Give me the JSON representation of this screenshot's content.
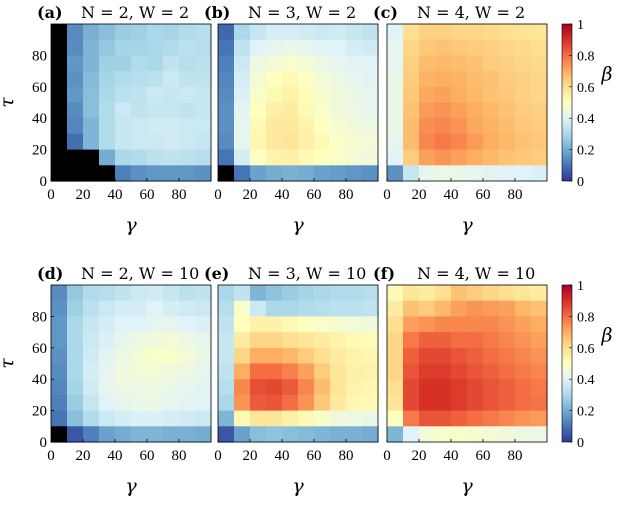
{
  "chart_data": {
    "type": "heatmap",
    "colorbar": {
      "label": "β",
      "range": [
        0,
        1
      ],
      "ticks": [
        "0",
        "0.2",
        "0.4",
        "0.6",
        "0.8",
        "1"
      ],
      "colormap": [
        "#313695",
        "#4575b4",
        "#74add1",
        "#abd9e9",
        "#e0f3f8",
        "#ffffbf",
        "#fee090",
        "#fdae61",
        "#f46d43",
        "#d73027",
        "#a50026"
      ]
    },
    "xlabel": "γ",
    "ylabel": "τ",
    "xticks": [
      "0",
      "20",
      "40",
      "60",
      "80"
    ],
    "yticks": [
      "0",
      "20",
      "40",
      "60",
      "80"
    ],
    "xlim": [
      0,
      100
    ],
    "ylim": [
      0,
      100
    ],
    "grid_size": 10,
    "panels": [
      {
        "label": "(a)",
        "title": "N = 2,  W = 2",
        "N": 2,
        "W": 2,
        "rows_top_to_bottom": [
          [
            -1,
            0.14,
            0.21,
            0.24,
            0.27,
            0.28,
            0.3,
            0.29,
            0.31,
            0.32
          ],
          [
            -1,
            0.14,
            0.22,
            0.26,
            0.29,
            0.29,
            0.3,
            0.31,
            0.33,
            0.32
          ],
          [
            -1,
            0.16,
            0.22,
            0.28,
            0.28,
            0.31,
            0.3,
            0.34,
            0.32,
            0.33
          ],
          [
            -1,
            0.15,
            0.23,
            0.29,
            0.31,
            0.32,
            0.33,
            0.36,
            0.34,
            0.34
          ],
          [
            -1,
            0.16,
            0.24,
            0.3,
            0.33,
            0.34,
            0.36,
            0.35,
            0.36,
            0.35
          ],
          [
            -1,
            0.14,
            0.24,
            0.31,
            0.36,
            0.34,
            0.35,
            0.35,
            0.34,
            0.35
          ],
          [
            -1,
            0.13,
            0.22,
            0.31,
            0.35,
            0.36,
            0.37,
            0.37,
            0.36,
            0.36
          ],
          [
            -1,
            0.09,
            0.22,
            0.31,
            0.35,
            0.36,
            0.36,
            0.37,
            0.36,
            0.35
          ],
          [
            -1,
            -1,
            -1,
            0.2,
            0.3,
            0.31,
            0.33,
            0.34,
            0.33,
            0.32
          ],
          [
            -1,
            -1,
            -1,
            -1,
            0.12,
            0.15,
            0.16,
            0.16,
            0.16,
            0.15
          ]
        ]
      },
      {
        "label": "(b)",
        "title": "N = 3,  W = 2",
        "N": 3,
        "W": 2,
        "rows_top_to_bottom": [
          [
            0.08,
            0.3,
            0.35,
            0.38,
            0.38,
            0.37,
            0.36,
            0.37,
            0.35,
            0.34
          ],
          [
            0.1,
            0.34,
            0.4,
            0.42,
            0.43,
            0.42,
            0.4,
            0.4,
            0.38,
            0.37
          ],
          [
            0.12,
            0.36,
            0.44,
            0.46,
            0.48,
            0.46,
            0.44,
            0.42,
            0.41,
            0.4
          ],
          [
            0.13,
            0.38,
            0.46,
            0.5,
            0.52,
            0.49,
            0.46,
            0.44,
            0.42,
            0.41
          ],
          [
            0.14,
            0.39,
            0.48,
            0.52,
            0.54,
            0.51,
            0.47,
            0.45,
            0.43,
            0.42
          ],
          [
            0.15,
            0.41,
            0.5,
            0.55,
            0.56,
            0.52,
            0.48,
            0.45,
            0.44,
            0.42
          ],
          [
            0.15,
            0.42,
            0.52,
            0.57,
            0.57,
            0.54,
            0.5,
            0.47,
            0.45,
            0.44
          ],
          [
            0.14,
            0.42,
            0.53,
            0.57,
            0.58,
            0.55,
            0.52,
            0.49,
            0.47,
            0.46
          ],
          [
            0.1,
            0.38,
            0.49,
            0.54,
            0.55,
            0.52,
            0.5,
            0.48,
            0.46,
            0.45
          ],
          [
            -1,
            0.1,
            0.18,
            0.2,
            0.21,
            0.2,
            0.18,
            0.17,
            0.16,
            0.15
          ]
        ]
      },
      {
        "label": "(c)",
        "title": "N = 4,  W = 2",
        "N": 4,
        "W": 2,
        "rows_top_to_bottom": [
          [
            0.4,
            0.6,
            0.63,
            0.63,
            0.62,
            0.62,
            0.61,
            0.6,
            0.59,
            0.58
          ],
          [
            0.42,
            0.62,
            0.65,
            0.66,
            0.65,
            0.64,
            0.63,
            0.62,
            0.61,
            0.6
          ],
          [
            0.42,
            0.63,
            0.67,
            0.68,
            0.67,
            0.66,
            0.64,
            0.63,
            0.62,
            0.61
          ],
          [
            0.43,
            0.64,
            0.69,
            0.7,
            0.69,
            0.67,
            0.66,
            0.64,
            0.63,
            0.62
          ],
          [
            0.43,
            0.65,
            0.71,
            0.72,
            0.7,
            0.68,
            0.66,
            0.65,
            0.63,
            0.62
          ],
          [
            0.43,
            0.66,
            0.73,
            0.74,
            0.72,
            0.7,
            0.68,
            0.66,
            0.64,
            0.63
          ],
          [
            0.43,
            0.67,
            0.75,
            0.76,
            0.74,
            0.71,
            0.69,
            0.67,
            0.65,
            0.64
          ],
          [
            0.42,
            0.67,
            0.76,
            0.78,
            0.76,
            0.73,
            0.7,
            0.68,
            0.66,
            0.65
          ],
          [
            0.4,
            0.64,
            0.72,
            0.74,
            0.72,
            0.7,
            0.68,
            0.66,
            0.65,
            0.64
          ],
          [
            0.15,
            0.35,
            0.42,
            0.44,
            0.43,
            0.42,
            0.41,
            0.4,
            0.4,
            0.39
          ]
        ]
      },
      {
        "label": "(d)",
        "title": "N = 2,  W = 10",
        "N": 2,
        "W": 10,
        "rows_top_to_bottom": [
          [
            0.14,
            0.26,
            0.31,
            0.32,
            0.34,
            0.36,
            0.37,
            0.35,
            0.33,
            0.34
          ],
          [
            0.15,
            0.28,
            0.33,
            0.36,
            0.38,
            0.38,
            0.4,
            0.38,
            0.37,
            0.36
          ],
          [
            0.16,
            0.3,
            0.35,
            0.38,
            0.4,
            0.4,
            0.42,
            0.42,
            0.4,
            0.39
          ],
          [
            0.16,
            0.3,
            0.36,
            0.39,
            0.42,
            0.44,
            0.45,
            0.46,
            0.44,
            0.42
          ],
          [
            0.15,
            0.3,
            0.37,
            0.41,
            0.44,
            0.46,
            0.48,
            0.48,
            0.46,
            0.43
          ],
          [
            0.14,
            0.3,
            0.38,
            0.42,
            0.45,
            0.46,
            0.46,
            0.45,
            0.44,
            0.42
          ],
          [
            0.13,
            0.29,
            0.37,
            0.42,
            0.44,
            0.44,
            0.44,
            0.43,
            0.42,
            0.41
          ],
          [
            0.12,
            0.27,
            0.35,
            0.4,
            0.42,
            0.43,
            0.43,
            0.42,
            0.41,
            0.4
          ],
          [
            0.1,
            0.24,
            0.31,
            0.36,
            0.38,
            0.39,
            0.39,
            0.38,
            0.37,
            0.36
          ],
          [
            -1,
            0.05,
            0.12,
            0.18,
            0.2,
            0.22,
            0.22,
            0.21,
            0.21,
            0.2
          ]
        ]
      },
      {
        "label": "(e)",
        "title": "N = 3,  W = 10",
        "N": 3,
        "W": 10,
        "rows_top_to_bottom": [
          [
            0.3,
            0.34,
            0.22,
            0.25,
            0.27,
            0.29,
            0.3,
            0.31,
            0.31,
            0.32
          ],
          [
            0.32,
            0.48,
            0.36,
            0.3,
            0.3,
            0.31,
            0.32,
            0.33,
            0.33,
            0.34
          ],
          [
            0.34,
            0.5,
            0.54,
            0.54,
            0.52,
            0.5,
            0.48,
            0.47,
            0.46,
            0.45
          ],
          [
            0.35,
            0.56,
            0.62,
            0.62,
            0.6,
            0.58,
            0.56,
            0.54,
            0.52,
            0.51
          ],
          [
            0.35,
            0.62,
            0.7,
            0.7,
            0.68,
            0.64,
            0.6,
            0.56,
            0.54,
            0.53
          ],
          [
            0.34,
            0.7,
            0.8,
            0.8,
            0.77,
            0.72,
            0.64,
            0.58,
            0.55,
            0.54
          ],
          [
            0.32,
            0.76,
            0.85,
            0.86,
            0.83,
            0.76,
            0.67,
            0.58,
            0.54,
            0.53
          ],
          [
            0.3,
            0.74,
            0.83,
            0.84,
            0.8,
            0.74,
            0.65,
            0.57,
            0.53,
            0.52
          ],
          [
            0.22,
            0.52,
            0.58,
            0.58,
            0.55,
            0.52,
            0.48,
            0.45,
            0.44,
            0.43
          ],
          [
            0.05,
            0.18,
            0.24,
            0.25,
            0.24,
            0.23,
            0.22,
            0.21,
            0.21,
            0.2
          ]
        ]
      },
      {
        "label": "(f)",
        "title": "N = 4,  W = 10",
        "N": 4,
        "W": 10,
        "rows_top_to_bottom": [
          [
            0.52,
            0.58,
            0.56,
            0.6,
            0.66,
            0.64,
            0.62,
            0.6,
            0.58,
            0.56
          ],
          [
            0.56,
            0.66,
            0.64,
            0.68,
            0.72,
            0.74,
            0.73,
            0.72,
            0.68,
            0.66
          ],
          [
            0.6,
            0.72,
            0.74,
            0.76,
            0.76,
            0.76,
            0.76,
            0.74,
            0.72,
            0.7
          ],
          [
            0.62,
            0.78,
            0.82,
            0.82,
            0.8,
            0.8,
            0.78,
            0.76,
            0.74,
            0.72
          ],
          [
            0.62,
            0.82,
            0.86,
            0.86,
            0.84,
            0.82,
            0.8,
            0.78,
            0.76,
            0.74
          ],
          [
            0.62,
            0.84,
            0.88,
            0.88,
            0.86,
            0.84,
            0.82,
            0.8,
            0.78,
            0.76
          ],
          [
            0.6,
            0.86,
            0.9,
            0.9,
            0.88,
            0.86,
            0.84,
            0.82,
            0.8,
            0.78
          ],
          [
            0.58,
            0.86,
            0.9,
            0.9,
            0.88,
            0.86,
            0.84,
            0.82,
            0.8,
            0.79
          ],
          [
            0.5,
            0.78,
            0.84,
            0.84,
            0.82,
            0.8,
            0.78,
            0.76,
            0.74,
            0.73
          ],
          [
            0.22,
            0.4,
            0.46,
            0.48,
            0.48,
            0.47,
            0.46,
            0.45,
            0.44,
            0.44
          ]
        ]
      }
    ]
  }
}
